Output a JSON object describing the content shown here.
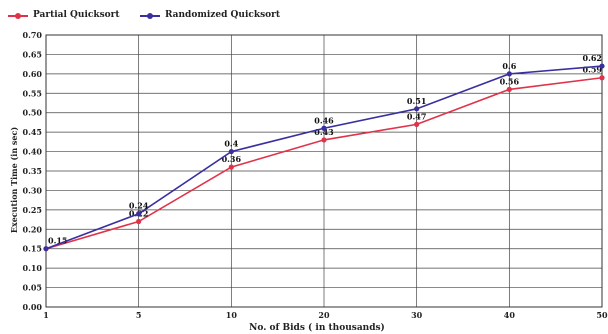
{
  "chart_data": {
    "type": "line",
    "title": "",
    "xlabel": "No. of Bids ( in thousands)",
    "ylabel": "Execution Time (in sec)",
    "categories": [
      "1",
      "5",
      "10",
      "20",
      "30",
      "40",
      "50"
    ],
    "ylim": [
      0,
      0.7
    ],
    "yticks": [
      "0.00",
      "0.05",
      "0.10",
      "0.15",
      "0.20",
      "0.25",
      "0.30",
      "0.35",
      "0.40",
      "0.45",
      "0.50",
      "0.55",
      "0.60",
      "0.65",
      "0.70"
    ],
    "grid": true,
    "legend_position": "top-left",
    "series": [
      {
        "name": "Partial Quicksort",
        "color": "#e0334a",
        "values": [
          0.15,
          0.22,
          0.36,
          0.43,
          0.47,
          0.56,
          0.59
        ],
        "labels": [
          "0.15",
          "0.22",
          "0.36",
          "0.43",
          "0.47",
          "0.56",
          "0.59"
        ]
      },
      {
        "name": "Randomized Quicksort",
        "color": "#3a2fa0",
        "values": [
          0.15,
          0.24,
          0.4,
          0.46,
          0.51,
          0.6,
          0.62
        ],
        "labels": [
          "",
          "0.24",
          "0.4",
          "0.46",
          "0.51",
          "0.6",
          "0.62"
        ]
      }
    ]
  }
}
